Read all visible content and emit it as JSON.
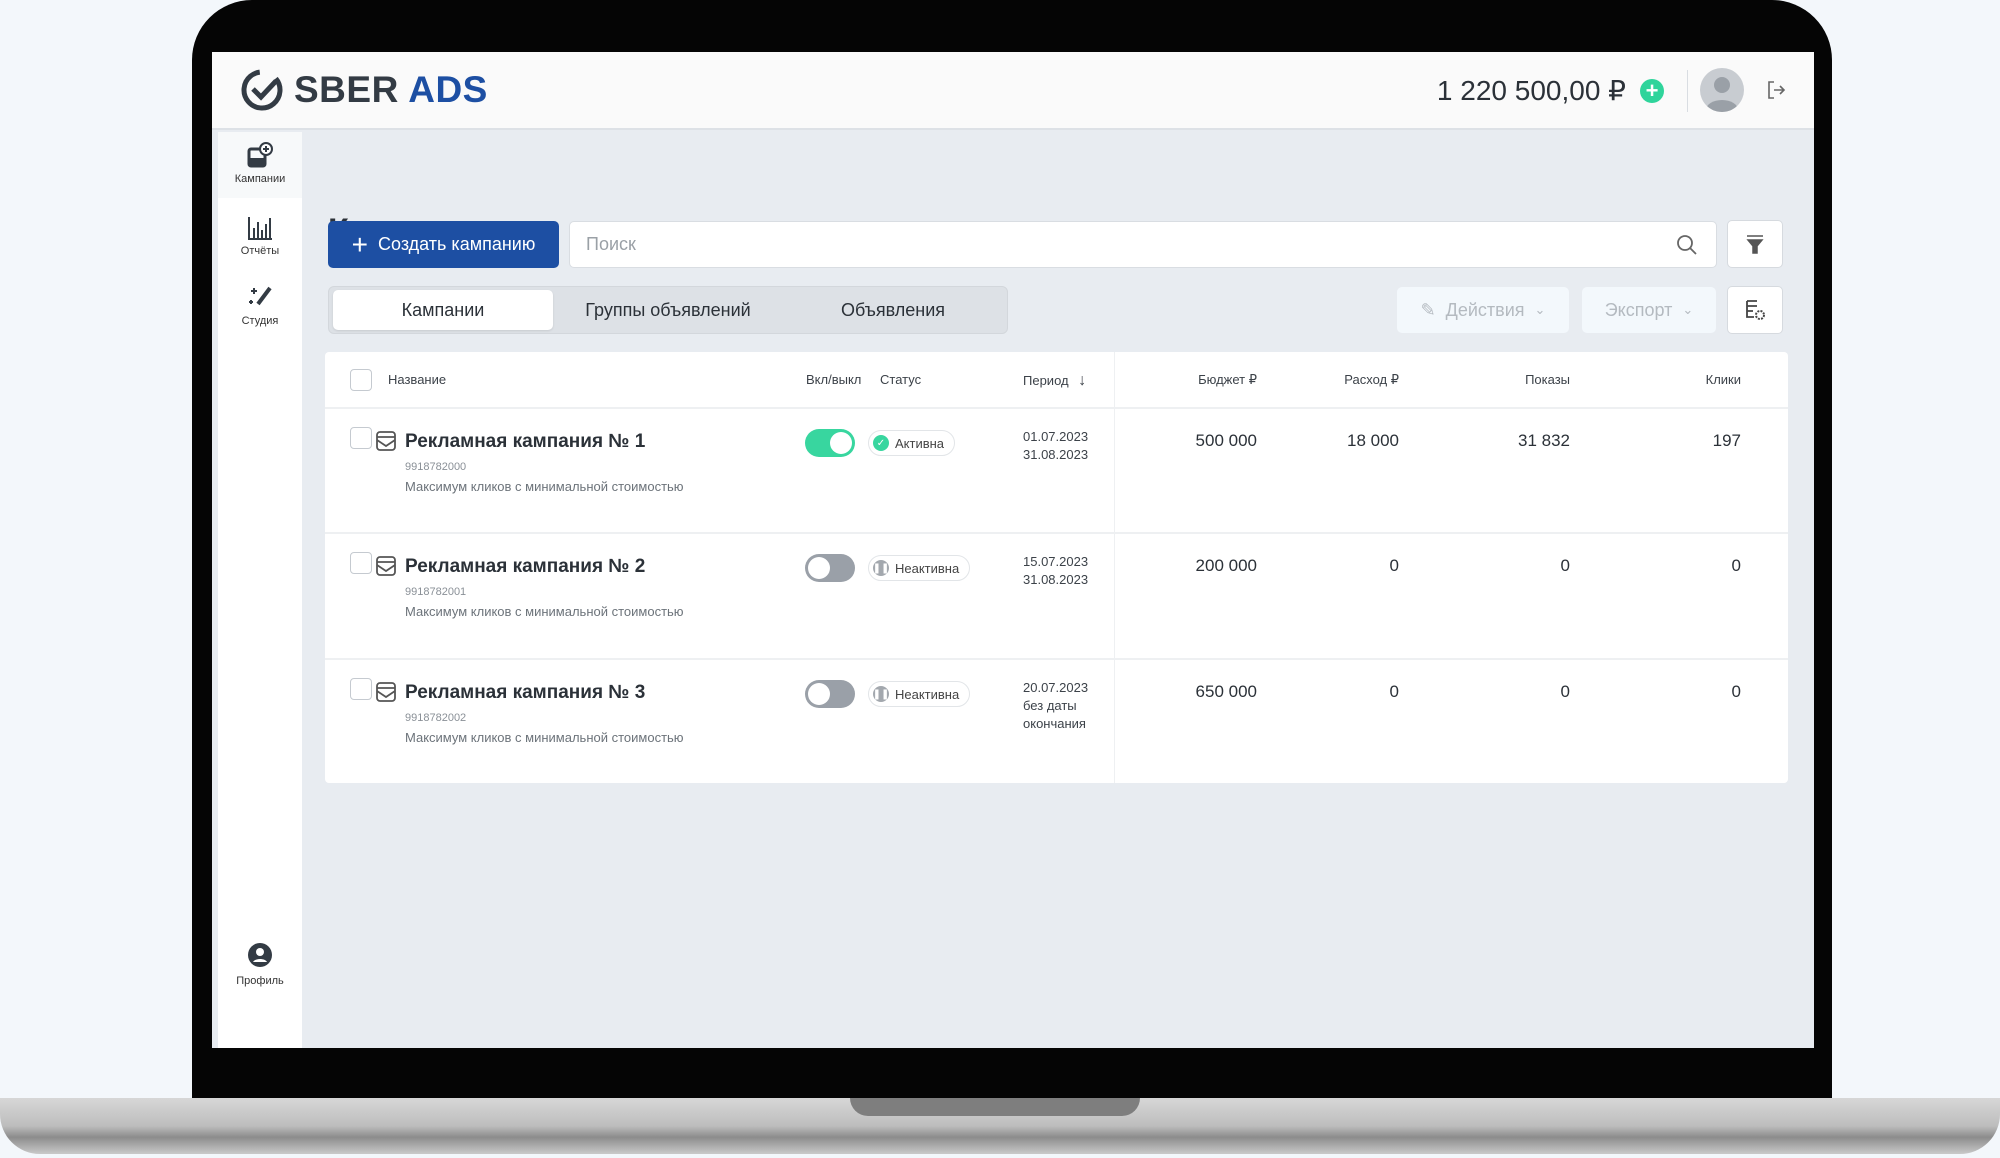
{
  "header": {
    "logo_left": "SBER",
    "logo_right": "ADS",
    "balance": "1 220 500,00 ₽"
  },
  "sidebar": {
    "items": [
      {
        "label": "Кампании",
        "icon": "campaign-add-icon"
      },
      {
        "label": "Отчёты",
        "icon": "bar-chart-icon"
      },
      {
        "label": "Студия",
        "icon": "magic-wand-icon"
      }
    ],
    "profile": "Профиль"
  },
  "page": {
    "title": "Кампании",
    "create_label": "Создать кампанию",
    "search_placeholder": "Поиск",
    "tabs": [
      {
        "label": "Кампании",
        "active": true
      },
      {
        "label": "Группы объявлений"
      },
      {
        "label": "Объявления"
      }
    ],
    "actions_label": "Действия",
    "export_label": "Экспорт"
  },
  "table": {
    "columns": {
      "name": "Название",
      "toggle": "Вкл/выкл",
      "status": "Статус",
      "period": "Период",
      "budget": "Бюджет ₽",
      "spend": "Расход ₽",
      "impressions": "Показы",
      "clicks": "Клики"
    },
    "rows": [
      {
        "name": "Рекламная кампания № 1",
        "id": "9918782000",
        "strategy": "Максимум кликов с минимальной стоимостью",
        "enabled": true,
        "status": "Активна",
        "period_start": "01.07.2023",
        "period_end": "31.08.2023",
        "budget": "500 000",
        "spend": "18 000",
        "impressions": "31 832",
        "clicks": "197"
      },
      {
        "name": "Рекламная кампания № 2",
        "id": "9918782001",
        "strategy": "Максимум кликов с минимальной стоимостью",
        "enabled": false,
        "status": "Неактивна",
        "period_start": "15.07.2023",
        "period_end": "31.08.2023",
        "budget": "200 000",
        "spend": "0",
        "impressions": "0",
        "clicks": "0"
      },
      {
        "name": "Рекламная кампания № 3",
        "id": "9918782002",
        "strategy": "Максимум кликов с минимальной стоимостью",
        "enabled": false,
        "status": "Неактивна",
        "period_start": "20.07.2023",
        "period_end": "без даты окончания",
        "budget": "650 000",
        "spend": "0",
        "impressions": "0",
        "clicks": "0"
      }
    ]
  },
  "colors": {
    "brand": "#1d4fa3",
    "active": "#38d69f",
    "inactive": "#9aa0a8"
  }
}
